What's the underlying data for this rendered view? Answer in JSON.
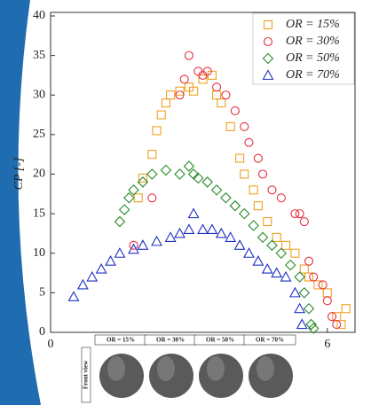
{
  "chart_data": {
    "type": "scatter",
    "ylabel": "CP [-]",
    "xlim": [
      0,
      6.6
    ],
    "ylim": [
      0,
      40
    ],
    "xticks": [
      0,
      6
    ],
    "yticks": [
      0,
      5,
      10,
      15,
      20,
      25,
      30,
      35,
      40
    ],
    "legend": "top-right",
    "series": [
      {
        "name": "OR = 15%",
        "color": "#f0a020",
        "marker": "square",
        "x": [
          1.9,
          2.0,
          2.2,
          2.3,
          2.4,
          2.5,
          2.6,
          2.8,
          3.0,
          3.1,
          3.3,
          3.5,
          3.6,
          3.7,
          3.9,
          4.1,
          4.2,
          4.4,
          4.5,
          4.7,
          4.9,
          5.1,
          5.3,
          5.5,
          5.6,
          5.8,
          6.0,
          6.2,
          6.3,
          6.4
        ],
        "values": [
          17,
          19.5,
          22.5,
          25.5,
          27.5,
          29,
          30,
          30.5,
          31,
          30.5,
          32,
          32.5,
          30,
          29,
          26,
          22,
          20,
          18,
          16,
          14,
          12,
          11,
          10,
          8,
          7,
          6,
          5,
          2,
          1,
          3
        ]
      },
      {
        "name": "OR = 30%",
        "color": "#e83040",
        "marker": "circle",
        "x": [
          1.8,
          2.2,
          2.8,
          2.9,
          3.0,
          3.2,
          3.3,
          3.4,
          3.6,
          3.8,
          4.0,
          4.2,
          4.3,
          4.5,
          4.6,
          4.8,
          5.0,
          5.3,
          5.4,
          5.5,
          5.6,
          5.7,
          5.9,
          6.0,
          6.1,
          6.2
        ],
        "values": [
          11,
          17,
          30,
          32,
          35,
          33,
          32.5,
          33,
          31,
          30,
          28,
          26,
          24,
          22,
          20,
          18,
          17,
          15,
          15,
          14,
          9,
          7,
          6,
          4,
          2,
          1
        ]
      },
      {
        "name": "OR = 50%",
        "color": "#2a8a2a",
        "marker": "diamond",
        "x": [
          1.5,
          1.6,
          1.7,
          1.8,
          2.0,
          2.2,
          2.5,
          2.8,
          3.0,
          3.1,
          3.2,
          3.4,
          3.6,
          3.8,
          4.0,
          4.2,
          4.4,
          4.6,
          4.8,
          5.0,
          5.2,
          5.4,
          5.5,
          5.6,
          5.65,
          5.7
        ],
        "values": [
          14,
          15.5,
          17,
          18,
          19,
          20,
          20.5,
          20,
          21,
          20,
          19.5,
          19,
          18,
          17,
          16,
          15,
          13.5,
          12,
          11,
          10,
          8.5,
          7,
          5,
          3,
          1,
          0.5
        ]
      },
      {
        "name": "OR = 70%",
        "color": "#2030c0",
        "marker": "triangle",
        "x": [
          0.5,
          0.7,
          0.9,
          1.1,
          1.3,
          1.5,
          1.8,
          2.0,
          2.3,
          2.6,
          2.8,
          3.0,
          3.1,
          3.3,
          3.5,
          3.7,
          3.9,
          4.1,
          4.3,
          4.5,
          4.7,
          4.9,
          5.1,
          5.3,
          5.4,
          5.45
        ],
        "values": [
          4.5,
          6,
          7,
          8,
          9,
          10,
          10.5,
          11,
          11.5,
          12,
          12.5,
          13,
          15,
          13,
          13,
          12.5,
          12,
          11,
          10,
          9,
          8,
          7.5,
          7,
          5,
          3,
          1
        ]
      }
    ]
  },
  "inset": {
    "labels": [
      "OR = 15%",
      "OR = 30%",
      "OR = 50%",
      "OR = 70%"
    ],
    "view_label": "Front view"
  }
}
